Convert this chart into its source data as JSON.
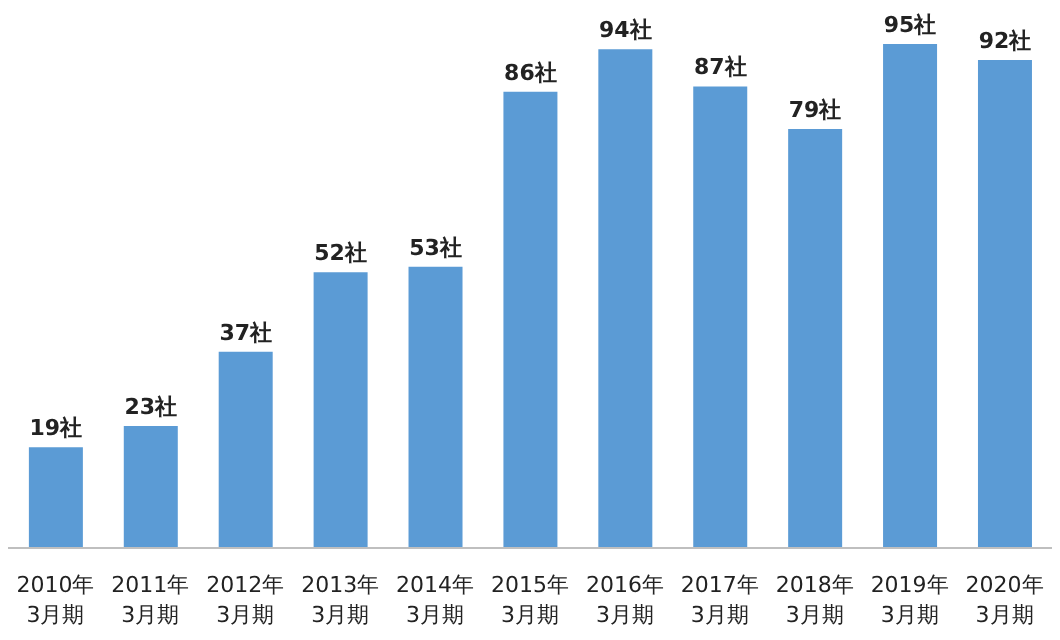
{
  "chart_data": {
    "type": "bar",
    "categories": [
      "2010年\n3月期",
      "2011年\n3月期",
      "2012年\n3月期",
      "2013年\n3月期",
      "2014年\n3月期",
      "2015年\n3月期",
      "2016年\n3月期",
      "2017年\n3月期",
      "2018年\n3月期",
      "2019年\n3月期",
      "2020年\n3月期"
    ],
    "values": [
      19,
      23,
      37,
      52,
      53,
      86,
      94,
      87,
      79,
      95,
      92
    ],
    "value_labels": [
      "19社",
      "23社",
      "37社",
      "52社",
      "53社",
      "86社",
      "94社",
      "87社",
      "79社",
      "95社",
      "92社"
    ],
    "color": "#5b9bd5",
    "grid": false,
    "legend": false
  }
}
